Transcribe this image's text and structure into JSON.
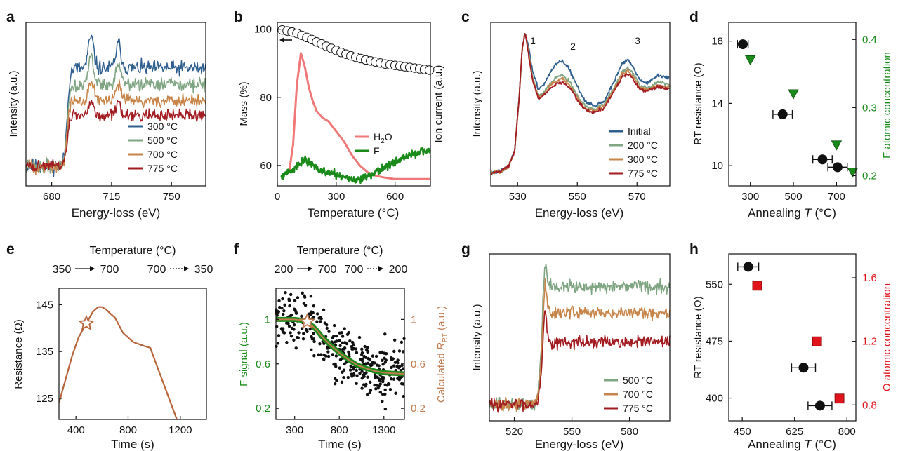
{
  "chart_data": [
    {
      "panel": "a",
      "type": "line",
      "xlabel": "Energy-loss (eV)",
      "ylabel": "Intensity (a.u.)",
      "xlim": [
        665,
        770
      ],
      "xticks": [
        680,
        715,
        750
      ],
      "legend": "bottom-right",
      "series": [
        {
          "name": "300 °C",
          "color": "#2f5f8f",
          "edge": 689,
          "pre": 0.12,
          "post": 0.72,
          "peaks": [
            [
              703,
              0.19
            ],
            [
              719,
              0.15
            ]
          ],
          "noise": 0.05,
          "seed": 11
        },
        {
          "name": "500 °C",
          "color": "#7fa583",
          "edge": 689,
          "pre": 0.12,
          "post": 0.62,
          "peaks": [
            [
              703,
              0.17
            ],
            [
              719,
              0.12
            ]
          ],
          "noise": 0.045,
          "seed": 22
        },
        {
          "name": "700 °C",
          "color": "#c7854a",
          "edge": 689,
          "pre": 0.12,
          "post": 0.52,
          "peaks": [
            [
              703,
              0.13
            ],
            [
              719,
              0.09
            ]
          ],
          "noise": 0.045,
          "seed": 33
        },
        {
          "name": "775 °C",
          "color": "#a31c22",
          "edge": 689,
          "pre": 0.12,
          "post": 0.43,
          "peaks": [
            [
              703,
              0.09
            ],
            [
              719,
              0.06
            ]
          ],
          "noise": 0.04,
          "seed": 44
        }
      ]
    },
    {
      "panel": "b",
      "type": "line",
      "xlabel": "Temperature (°C)",
      "ylabel": "Mass (%)",
      "ylabel_right": "Ion current (a.u.)",
      "xlim": [
        0,
        780
      ],
      "xticks": [
        0,
        300,
        600
      ],
      "ylim": [
        54,
        102
      ],
      "yticks": [
        60,
        80,
        100
      ],
      "legend": "center-right",
      "mass": {
        "name": "Mass",
        "x": [
          25,
          50,
          75,
          100,
          125,
          150,
          175,
          200,
          225,
          250,
          275,
          300,
          325,
          350,
          375,
          400,
          425,
          450,
          475,
          500,
          525,
          550,
          575,
          600,
          625,
          650,
          675,
          700,
          725,
          750,
          775
        ],
        "y": [
          99.8,
          99.5,
          99.2,
          98.8,
          98.2,
          97.6,
          97.0,
          96.3,
          95.7,
          95.0,
          94.4,
          93.8,
          93.2,
          92.7,
          92.2,
          91.8,
          91.4,
          91.0,
          90.7,
          90.4,
          90.1,
          89.8,
          89.6,
          89.4,
          89.2,
          89.0,
          88.8,
          88.6,
          88.4,
          88.2,
          88.0
        ]
      },
      "series": [
        {
          "name": "H2O",
          "color": "#f07878",
          "x": [
            20,
            60,
            80,
            100,
            120,
            140,
            160,
            180,
            200,
            230,
            260,
            300,
            340,
            380,
            420,
            460,
            500,
            540,
            600,
            700,
            780
          ],
          "y": [
            57,
            58,
            66,
            84,
            93,
            89,
            83,
            79,
            76,
            74,
            73,
            70,
            67,
            63,
            60,
            58,
            57,
            56.5,
            56,
            56,
            56
          ]
        },
        {
          "name": "F",
          "color": "#1a8a1a",
          "x": [
            20,
            60,
            100,
            140,
            180,
            220,
            260,
            300,
            350,
            400,
            450,
            500,
            550,
            600,
            650,
            700,
            750,
            780
          ],
          "y": [
            57,
            58,
            60,
            61.5,
            60,
            58.5,
            58,
            57.5,
            56.5,
            55.5,
            56.5,
            58,
            59.5,
            61,
            62.5,
            63.5,
            64,
            64.5
          ],
          "noise": 1.2,
          "seed": 55
        }
      ]
    },
    {
      "panel": "c",
      "type": "line",
      "xlabel": "Energy-loss (eV)",
      "ylabel": "Intensity (a.u.)",
      "xlim": [
        521,
        581
      ],
      "xticks": [
        530,
        550,
        570
      ],
      "legend": "bottom-right",
      "annotations": [
        "1",
        "2",
        "3"
      ],
      "series": [
        {
          "name": "Initial",
          "color": "#2f5f8f",
          "x": [
            521,
            524,
            527,
            529,
            530.5,
            531.5,
            532.5,
            533.5,
            535,
            537,
            539,
            541,
            543,
            545,
            547,
            549,
            551,
            553,
            556,
            559,
            562,
            565,
            567,
            569,
            571,
            573,
            575,
            577,
            579,
            581
          ],
          "y": [
            0.08,
            0.09,
            0.12,
            0.22,
            0.55,
            0.85,
            0.96,
            0.88,
            0.72,
            0.6,
            0.64,
            0.71,
            0.76,
            0.78,
            0.74,
            0.66,
            0.58,
            0.52,
            0.5,
            0.53,
            0.64,
            0.76,
            0.79,
            0.73,
            0.66,
            0.64,
            0.66,
            0.69,
            0.68,
            0.67
          ],
          "noise": 0.012,
          "seed": 61
        },
        {
          "name": "200 °C",
          "color": "#7fa583",
          "x": [
            521,
            524,
            527,
            529,
            530.5,
            531.5,
            532.5,
            533.5,
            535,
            537,
            539,
            541,
            543,
            545,
            547,
            549,
            551,
            553,
            556,
            559,
            562,
            565,
            567,
            569,
            571,
            573,
            575,
            577,
            579,
            581
          ],
          "y": [
            0.08,
            0.09,
            0.12,
            0.22,
            0.55,
            0.85,
            0.96,
            0.86,
            0.68,
            0.56,
            0.59,
            0.64,
            0.68,
            0.69,
            0.66,
            0.6,
            0.53,
            0.49,
            0.48,
            0.51,
            0.6,
            0.71,
            0.74,
            0.69,
            0.63,
            0.61,
            0.62,
            0.65,
            0.64,
            0.63
          ],
          "noise": 0.012,
          "seed": 62
        },
        {
          "name": "300 °C",
          "color": "#c7854a",
          "x": [
            521,
            524,
            527,
            529,
            530.5,
            531.5,
            532.5,
            533.5,
            535,
            537,
            539,
            541,
            543,
            545,
            547,
            549,
            551,
            553,
            556,
            559,
            562,
            565,
            567,
            569,
            571,
            573,
            575,
            577,
            579,
            581
          ],
          "y": [
            0.08,
            0.09,
            0.12,
            0.22,
            0.55,
            0.85,
            0.96,
            0.85,
            0.67,
            0.55,
            0.58,
            0.63,
            0.66,
            0.67,
            0.64,
            0.58,
            0.52,
            0.48,
            0.47,
            0.5,
            0.59,
            0.7,
            0.72,
            0.67,
            0.61,
            0.6,
            0.61,
            0.63,
            0.62,
            0.62
          ],
          "noise": 0.012,
          "seed": 63
        },
        {
          "name": "775 °C",
          "color": "#a31c22",
          "x": [
            521,
            524,
            527,
            529,
            530.5,
            531.5,
            532.5,
            533.5,
            535,
            537,
            539,
            541,
            543,
            545,
            547,
            549,
            551,
            553,
            556,
            559,
            562,
            565,
            567,
            569,
            571,
            573,
            575,
            577,
            579,
            581
          ],
          "y": [
            0.08,
            0.09,
            0.12,
            0.22,
            0.55,
            0.85,
            0.96,
            0.84,
            0.66,
            0.54,
            0.57,
            0.61,
            0.64,
            0.65,
            0.62,
            0.57,
            0.51,
            0.47,
            0.46,
            0.49,
            0.58,
            0.68,
            0.7,
            0.66,
            0.6,
            0.59,
            0.6,
            0.62,
            0.61,
            0.61
          ],
          "noise": 0.012,
          "seed": 64
        }
      ]
    },
    {
      "panel": "d",
      "type": "scatter",
      "xlabel_text": "Annealing ",
      "xlabel_italic": "T",
      "xlabel_unit": " (°C)",
      "ylabel": "RT resistance (Ω)",
      "ylabel_right": "F atomic concentration",
      "xlim": [
        200,
        790
      ],
      "xticks": [
        300,
        500,
        700
      ],
      "ylim": [
        8.7,
        19.2
      ],
      "yticks": [
        10,
        14,
        18
      ],
      "ylim_right": [
        0.185,
        0.425
      ],
      "yticks_right": [
        0.2,
        0.3,
        0.4
      ],
      "right_color": "#1a8a1a",
      "resistance": {
        "x": [
          265,
          450,
          635,
          705
        ],
        "y": [
          17.8,
          13.3,
          10.4,
          9.9
        ],
        "xerr": [
          25,
          45,
          45,
          45
        ]
      },
      "f_concentration": {
        "x": [
          300,
          500,
          700,
          775
        ],
        "y": [
          0.37,
          0.32,
          0.245,
          0.205
        ]
      }
    },
    {
      "panel": "e",
      "type": "line",
      "xlabel": "Time (s)",
      "ylabel": "Resistance (Ω)",
      "top_label": "Temperature (°C)",
      "top_start": "350",
      "top_mid": "700",
      "top_mid2": "700",
      "top_end": "350",
      "xlim": [
        270,
        1400
      ],
      "xticks": [
        400,
        800,
        1200
      ],
      "ylim": [
        120.5,
        148.5
      ],
      "yticks": [
        125,
        135,
        145
      ],
      "color": "#b8643a",
      "x": [
        270,
        320,
        370,
        420,
        480,
        530,
        570,
        600,
        630,
        660,
        700,
        760,
        840,
        920,
        970,
        1000,
        1040,
        1100,
        1160,
        1200,
        1220
      ],
      "y": [
        124,
        129,
        134,
        138,
        141,
        143.5,
        144.5,
        144.5,
        144,
        143.2,
        142.2,
        139,
        137,
        136.2,
        135.8,
        133.5,
        130.5,
        126,
        121.5,
        118.5,
        117
      ],
      "star": {
        "x": 480,
        "y": 141
      }
    },
    {
      "panel": "f",
      "type": "scatter",
      "xlabel": "Time (s)",
      "ylabel": "F signal (a.u.)",
      "ylabel_right_text": "Calculated ",
      "ylabel_right_italic": "R",
      "ylabel_right_sub": "RT",
      "ylabel_right_unit": " (a.u.)",
      "top_label": "Temperature (°C)",
      "top_start": "200",
      "top_mid": "700",
      "top_mid2": "700",
      "top_end": "200",
      "xlim": [
        90,
        1530
      ],
      "xticks": [
        300,
        800,
        1300
      ],
      "ylim": [
        0.1,
        1.28
      ],
      "yticks": [
        0.2,
        0.6,
        1
      ],
      "left_color": "#1a8a1a",
      "right_color": "#c07b50",
      "fit": {
        "x": [
          90,
          200,
          300,
          400,
          450,
          500,
          550,
          600,
          700,
          800,
          900,
          1000,
          1100,
          1200,
          1300,
          1400,
          1530
        ],
        "y": [
          1.0,
          1.0,
          1.0,
          0.99,
          0.97,
          0.94,
          0.9,
          0.85,
          0.77,
          0.7,
          0.64,
          0.59,
          0.56,
          0.535,
          0.52,
          0.515,
          0.51
        ]
      },
      "points": {
        "count": 360,
        "noise": 0.17,
        "seed": 77
      },
      "star": {
        "x": 440,
        "y": 0.98
      }
    },
    {
      "panel": "g",
      "type": "line",
      "xlabel": "Energy-loss (eV)",
      "ylabel": "Intensity (a.u.)",
      "xlim": [
        507,
        601
      ],
      "xticks": [
        520,
        550,
        580
      ],
      "legend": "bottom-right",
      "series": [
        {
          "name": "500 °C",
          "color": "#7fa583",
          "edge": 534,
          "pre": 0.1,
          "post": 0.82,
          "spike": 0.18,
          "noise": 0.045,
          "seed": 81
        },
        {
          "name": "700 °C",
          "color": "#c7854a",
          "edge": 534,
          "pre": 0.1,
          "post": 0.66,
          "spike": 0.22,
          "noise": 0.04,
          "seed": 82
        },
        {
          "name": "775 °C",
          "color": "#a31c22",
          "edge": 534,
          "pre": 0.1,
          "post": 0.48,
          "spike": 0.22,
          "noise": 0.04,
          "seed": 83
        }
      ]
    },
    {
      "panel": "h",
      "type": "scatter",
      "xlabel_text": "Annealing ",
      "xlabel_italic": "T",
      "xlabel_unit": " (°C)",
      "ylabel": "RT resistance (Ω)",
      "ylabel_right": "O atomic concentration",
      "xlim": [
        405,
        830
      ],
      "xticks": [
        450,
        625,
        800
      ],
      "ylim": [
        370,
        590
      ],
      "yticks": [
        400,
        475,
        550
      ],
      "ylim_right": [
        0.7,
        1.75
      ],
      "yticks_right": [
        0.8,
        1.2,
        1.6
      ],
      "right_color": "#e0141a",
      "resistance": {
        "x": [
          470,
          655,
          710
        ],
        "y": [
          573,
          440,
          390
        ],
        "xerr": [
          35,
          40,
          40
        ]
      },
      "o_concentration": {
        "x": [
          500,
          700,
          775
        ],
        "y": [
          1.55,
          1.2,
          0.84
        ]
      }
    }
  ],
  "panel_labels": [
    "a",
    "b",
    "c",
    "d",
    "e",
    "f",
    "g",
    "h"
  ]
}
